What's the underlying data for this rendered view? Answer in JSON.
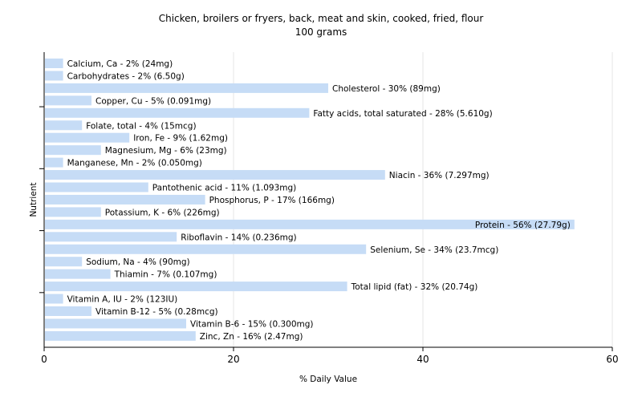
{
  "chart_data": {
    "type": "bar",
    "orientation": "horizontal",
    "title": "Chicken, broilers or fryers, back, meat and skin, cooked, fried, flour",
    "subtitle": "100 grams",
    "xlabel": "% Daily Value",
    "ylabel": "Nutrient",
    "xlim": [
      0,
      60
    ],
    "xticks": [
      "0",
      "20",
      "40",
      "60"
    ],
    "grid": true,
    "bar_color": "#c6dcf6",
    "categories": [
      "Calcium, Ca",
      "Carbohydrates",
      "Cholesterol",
      "Copper, Cu",
      "Fatty acids, total saturated",
      "Folate, total",
      "Iron, Fe",
      "Magnesium, Mg",
      "Manganese, Mn",
      "Niacin",
      "Pantothenic acid",
      "Phosphorus, P",
      "Potassium, K",
      "Protein",
      "Riboflavin",
      "Selenium, Se",
      "Sodium, Na",
      "Thiamin",
      "Total lipid (fat)",
      "Vitamin A, IU",
      "Vitamin B-12",
      "Vitamin B-6",
      "Zinc, Zn"
    ],
    "values": [
      2,
      2,
      30,
      5,
      28,
      4,
      9,
      6,
      2,
      36,
      11,
      17,
      6,
      56,
      14,
      34,
      4,
      7,
      32,
      2,
      5,
      15,
      16
    ],
    "labels": [
      "Calcium, Ca - 2% (24mg)",
      "Carbohydrates - 2% (6.50g)",
      "Cholesterol - 30% (89mg)",
      "Copper, Cu - 5% (0.091mg)",
      "Fatty acids, total saturated - 28% (5.610g)",
      "Folate, total - 4% (15mcg)",
      "Iron, Fe - 9% (1.62mg)",
      "Magnesium, Mg - 6% (23mg)",
      "Manganese, Mn - 2% (0.050mg)",
      "Niacin - 36% (7.297mg)",
      "Pantothenic acid - 11% (1.093mg)",
      "Phosphorus, P - 17% (166mg)",
      "Potassium, K - 6% (226mg)",
      "Protein - 56% (27.79g)",
      "Riboflavin - 14% (0.236mg)",
      "Selenium, Se - 34% (23.7mcg)",
      "Sodium, Na - 4% (90mg)",
      "Thiamin - 7% (0.107mg)",
      "Total lipid (fat) - 32% (20.74g)",
      "Vitamin A, IU - 2% (123IU)",
      "Vitamin B-12 - 5% (0.28mcg)",
      "Vitamin B-6 - 15% (0.300mg)",
      "Zinc, Zn - 16% (2.47mg)"
    ]
  }
}
